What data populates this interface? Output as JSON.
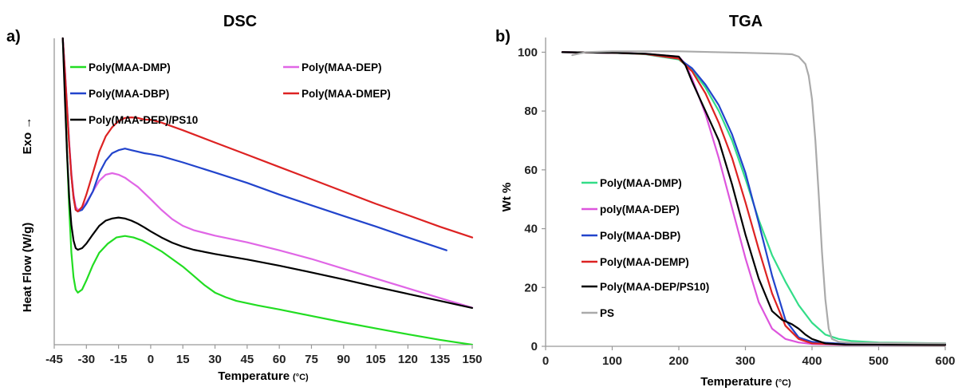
{
  "chart_data": [
    {
      "type": "line",
      "panel_label": "a)",
      "title": "DSC",
      "xlabel": "Temperature",
      "xlabel_unit": "(°C)",
      "ylabel": "Heat Flow (W/g)",
      "ylabel_top": "Exo →",
      "xlim": [
        -45,
        150
      ],
      "x_ticks": [
        -45,
        -30,
        -15,
        0,
        15,
        30,
        45,
        60,
        75,
        90,
        105,
        120,
        135,
        150
      ],
      "y_ticks_shown": false,
      "ylim": [
        0,
        100
      ],
      "grid": false,
      "legend": "top, two columns",
      "series": [
        {
          "name": "Poly(MAA-DMP)",
          "color": "#22dd22",
          "x": [
            -41,
            -40,
            -39,
            -38,
            -37,
            -36,
            -35,
            -34,
            -32,
            -30,
            -27,
            -24,
            -20,
            -16,
            -12,
            -8,
            -4,
            0,
            5,
            10,
            15,
            20,
            25,
            30,
            35,
            40,
            50,
            60,
            75,
            90,
            105,
            120,
            135,
            150
          ],
          "y": [
            100,
            84,
            62,
            44,
            30,
            22,
            18,
            17,
            18,
            21,
            26,
            30,
            33,
            35,
            35.5,
            35,
            34,
            32.5,
            30.5,
            28,
            25.5,
            22.5,
            19.5,
            17,
            15.5,
            14.3,
            12.8,
            11.5,
            9.4,
            7.3,
            5.3,
            3.4,
            1.6,
            0
          ]
        },
        {
          "name": "Poly(MAA-DEP)",
          "color": "#e066e6",
          "x": [
            -41,
            -40,
            -39,
            -38,
            -37,
            -36,
            -35,
            -34,
            -32,
            -30,
            -27,
            -24,
            -21,
            -18,
            -15,
            -12,
            -9,
            -6,
            -3,
            0,
            5,
            10,
            15,
            20,
            30,
            45,
            60,
            75,
            90,
            105,
            120,
            135,
            150
          ],
          "y": [
            100,
            90,
            78,
            66,
            56,
            49,
            45,
            44,
            44.5,
            46.5,
            50,
            53.5,
            55.5,
            56,
            55.5,
            54.5,
            53,
            51.5,
            49.5,
            47.5,
            44,
            41,
            38.8,
            37.4,
            35.6,
            33.4,
            30.8,
            28,
            24.8,
            21.6,
            18.4,
            15.2,
            12.1
          ]
        },
        {
          "name": "Poly(MAA-DBP)",
          "color": "#2244cc",
          "x": [
            -41,
            -40,
            -39,
            -38,
            -37,
            -36,
            -35,
            -34,
            -32,
            -30,
            -27,
            -24,
            -21,
            -18,
            -15,
            -12,
            -9,
            -6,
            -3,
            0,
            5,
            15,
            30,
            45,
            60,
            75,
            90,
            105,
            120,
            138
          ],
          "y": [
            100,
            89,
            77,
            65,
            55,
            48,
            44,
            43.5,
            44,
            46,
            50,
            56,
            60,
            62.5,
            63.5,
            64,
            63.5,
            63,
            62.5,
            62.2,
            61.5,
            59.5,
            56.2,
            52.8,
            49,
            45.5,
            42,
            38.6,
            35,
            30.8
          ]
        },
        {
          "name": "Poly(MAA-DMEP)",
          "color": "#dd2222",
          "x": [
            -41,
            -40,
            -39,
            -38,
            -37,
            -36,
            -35,
            -34,
            -32,
            -30,
            -27,
            -24,
            -21,
            -18,
            -15,
            -12,
            -9,
            -6,
            -3,
            0,
            5,
            15,
            30,
            45,
            60,
            75,
            90,
            105,
            120,
            135,
            150
          ],
          "y": [
            100,
            89,
            77,
            65,
            55,
            48,
            44,
            43.5,
            45,
            49,
            56,
            63,
            68,
            71,
            73,
            74,
            74.2,
            74,
            73.5,
            73.4,
            72.5,
            70,
            66,
            62,
            58,
            54,
            50,
            46,
            42.3,
            38.5,
            35
          ]
        },
        {
          "name": "Poly(MAA-DEP)/PS10",
          "color": "#000000",
          "x": [
            -41,
            -40,
            -39,
            -38,
            -37,
            -36,
            -35,
            -34,
            -32,
            -30,
            -27,
            -24,
            -21,
            -18,
            -15,
            -12,
            -9,
            -6,
            -3,
            0,
            5,
            10,
            15,
            20,
            30,
            45,
            60,
            75,
            90,
            105,
            120,
            135,
            150
          ],
          "y": [
            100,
            80,
            62,
            48,
            39,
            34,
            31.5,
            31,
            31.5,
            33,
            36,
            38.8,
            40.5,
            41.2,
            41.5,
            41.2,
            40.5,
            39.5,
            38.3,
            37,
            35,
            33.3,
            32,
            31,
            29.6,
            27.8,
            25.8,
            23.6,
            21.3,
            18.9,
            16.6,
            14.3,
            12
          ]
        }
      ]
    },
    {
      "type": "line",
      "panel_label": "b)",
      "title": "TGA",
      "xlabel": "Temperature",
      "xlabel_unit": "(°C)",
      "ylabel": "Wt %",
      "xlim": [
        0,
        600
      ],
      "ylim": [
        0,
        105
      ],
      "x_ticks": [
        0,
        100,
        200,
        300,
        400,
        500,
        600
      ],
      "y_ticks": [
        0,
        20,
        40,
        60,
        80,
        100
      ],
      "grid": false,
      "legend": "center-left, inside plot",
      "series": [
        {
          "name": "Poly(MAA-DMP)",
          "color": "#33dd88",
          "x": [
            25,
            100,
            150,
            200,
            220,
            240,
            260,
            280,
            300,
            320,
            340,
            360,
            380,
            400,
            420,
            440,
            460,
            500,
            600
          ],
          "y": [
            100,
            99.8,
            99.3,
            97.5,
            94,
            88,
            80,
            70,
            57,
            43,
            31,
            22,
            14,
            8,
            4,
            2.5,
            1.8,
            1.3,
            1
          ]
        },
        {
          "name": "poly(MAA-DEP)",
          "color": "#dd55dd",
          "x": [
            25,
            100,
            150,
            200,
            210,
            220,
            240,
            260,
            280,
            300,
            320,
            340,
            360,
            380,
            400,
            450,
            600
          ],
          "y": [
            100,
            99.8,
            99.5,
            98.5,
            96,
            91,
            79,
            64,
            47,
            30,
            15,
            6,
            2.5,
            1.3,
            0.8,
            0.5,
            0.5
          ]
        },
        {
          "name": "Poly(MAA-DBP)",
          "color": "#2244cc",
          "x": [
            25,
            100,
            150,
            200,
            220,
            240,
            260,
            280,
            300,
            320,
            340,
            360,
            380,
            400,
            450,
            600
          ],
          "y": [
            100,
            99.8,
            99.4,
            97.8,
            94.5,
            89,
            82,
            72,
            59,
            42,
            24,
            9,
            3,
            1.5,
            0.8,
            0.6
          ]
        },
        {
          "name": "Poly(MAA-DEMP)",
          "color": "#dd2222",
          "x": [
            25,
            100,
            150,
            200,
            220,
            240,
            260,
            280,
            300,
            320,
            340,
            360,
            380,
            400,
            450,
            600
          ],
          "y": [
            100,
            99.8,
            99.4,
            97.8,
            93.5,
            86,
            76,
            64,
            49,
            33,
            18,
            7,
            2.5,
            1,
            0.6,
            0.5
          ]
        },
        {
          "name": "Poly(MAA-DEP/PS10)",
          "color": "#000000",
          "x": [
            25,
            100,
            150,
            200,
            210,
            220,
            240,
            260,
            280,
            300,
            320,
            340,
            355,
            370,
            380,
            390,
            400,
            420,
            450,
            600
          ],
          "y": [
            100,
            99.8,
            99.5,
            98.5,
            95.5,
            90,
            80,
            70,
            55,
            38,
            23,
            12,
            9,
            7.5,
            6,
            4,
            2.5,
            1,
            0.6,
            0.5
          ]
        },
        {
          "name": "PS",
          "color": "#aaaaaa",
          "x": [
            40,
            60,
            100,
            200,
            300,
            350,
            370,
            380,
            390,
            395,
            400,
            405,
            410,
            415,
            420,
            425,
            430,
            440,
            460,
            500,
            600
          ],
          "y": [
            99,
            100,
            100.3,
            100.3,
            99.8,
            99.5,
            99.3,
            98.5,
            96,
            92,
            84,
            70,
            52,
            32,
            16,
            6,
            2.5,
            1.5,
            1.2,
            1.1,
            1
          ]
        }
      ]
    }
  ]
}
